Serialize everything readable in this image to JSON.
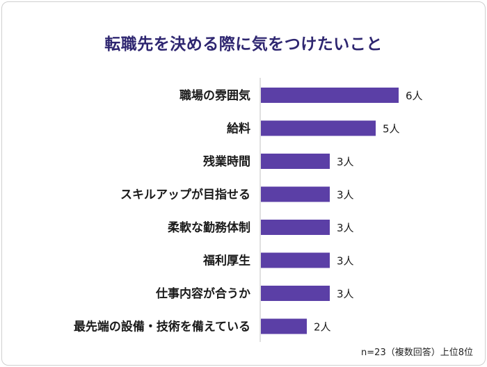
{
  "chart_data": {
    "type": "bar",
    "orientation": "horizontal",
    "title": "転職先を決める際に気をつけたいこと",
    "categories": [
      "職場の雰囲気",
      "給料",
      "残業時間",
      "スキルアップが目指せる",
      "柔軟な勤務体制",
      "福利厚生",
      "仕事内容が合うか",
      "最先端の設備・技術を備えている"
    ],
    "values": [
      6,
      5,
      3,
      3,
      3,
      3,
      3,
      2
    ],
    "data_labels": [
      "6人",
      "5人",
      "3人",
      "3人",
      "3人",
      "3人",
      "3人",
      "2人"
    ],
    "unit": "人",
    "xlim": [
      0,
      6
    ],
    "grid": false,
    "legend": "none",
    "bar_color": "#5b3fa6"
  },
  "note": "n=23（複数回答）上位8位",
  "colors": {
    "title": "#2e2670",
    "bar": "#5b3fa6",
    "axis": "#d6d6d6",
    "text": "#1a1a1a"
  }
}
